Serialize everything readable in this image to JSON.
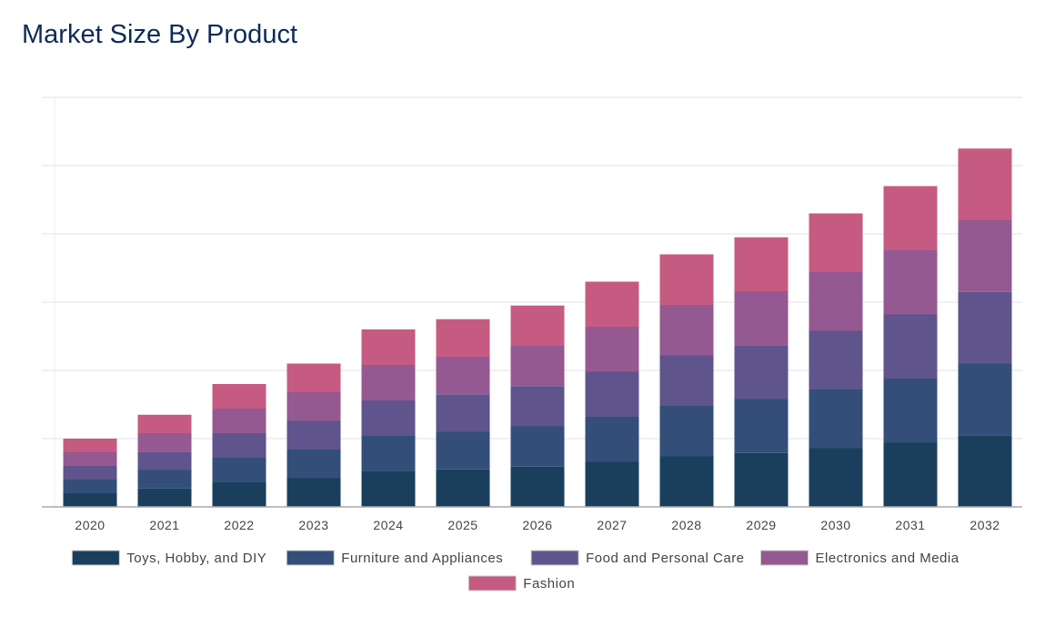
{
  "chart_data": {
    "type": "bar",
    "stacked": true,
    "title": "Market Size By Product",
    "xlabel": "",
    "ylabel": "",
    "ylim": [
      0,
      6
    ],
    "y_tick_labels_shown": false,
    "grid": true,
    "legend_placement": "bottom",
    "categories": [
      "2020",
      "2021",
      "2022",
      "2023",
      "2024",
      "2025",
      "2026",
      "2027",
      "2028",
      "2029",
      "2030",
      "2031",
      "2032"
    ],
    "series": [
      {
        "name": "Toys, Hobby, and DIY",
        "color": "#1a3f5c",
        "values": [
          0.2,
          0.27,
          0.36,
          0.42,
          0.52,
          0.55,
          0.59,
          0.66,
          0.74,
          0.79,
          0.86,
          0.94,
          1.05
        ]
      },
      {
        "name": "Furniture and Appliances",
        "color": "#344e7a",
        "values": [
          0.2,
          0.27,
          0.36,
          0.42,
          0.52,
          0.55,
          0.59,
          0.66,
          0.74,
          0.79,
          0.86,
          0.94,
          1.05
        ]
      },
      {
        "name": "Food and Personal Care",
        "color": "#5f548b",
        "values": [
          0.2,
          0.27,
          0.36,
          0.42,
          0.52,
          0.55,
          0.59,
          0.66,
          0.74,
          0.79,
          0.86,
          0.94,
          1.05
        ]
      },
      {
        "name": "Electronics and Media",
        "color": "#955991",
        "values": [
          0.2,
          0.27,
          0.36,
          0.42,
          0.52,
          0.55,
          0.59,
          0.66,
          0.74,
          0.79,
          0.86,
          0.94,
          1.05
        ]
      },
      {
        "name": "Fashion",
        "color": "#c65b82",
        "values": [
          0.2,
          0.27,
          0.36,
          0.42,
          0.52,
          0.55,
          0.59,
          0.66,
          0.74,
          0.79,
          0.86,
          0.94,
          1.05
        ]
      }
    ]
  }
}
